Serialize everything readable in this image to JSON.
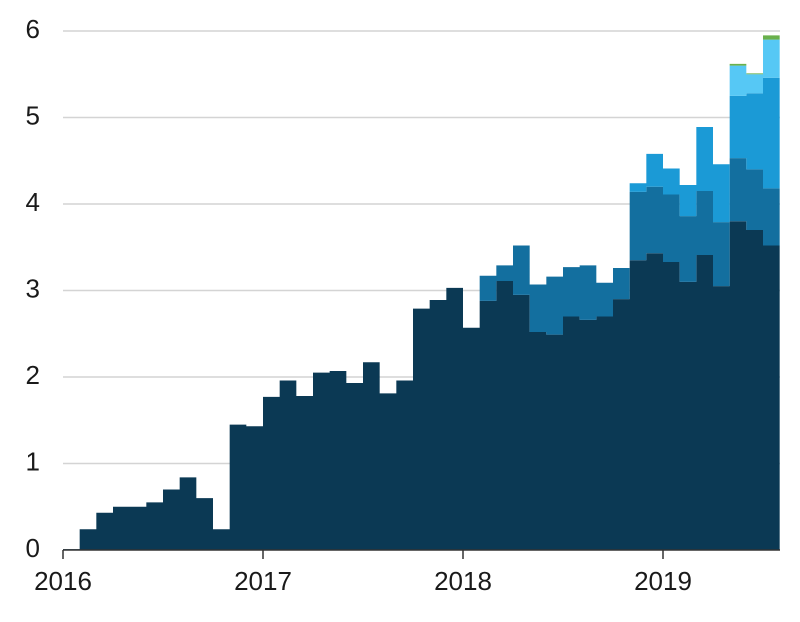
{
  "chart_data": {
    "type": "area",
    "stacked": true,
    "step": true,
    "x_start": "2016-01",
    "x_step": "month",
    "x": [
      "2016-01",
      "2016-02",
      "2016-03",
      "2016-04",
      "2016-05",
      "2016-06",
      "2016-07",
      "2016-08",
      "2016-09",
      "2016-10",
      "2016-11",
      "2016-12",
      "2017-01",
      "2017-02",
      "2017-03",
      "2017-04",
      "2017-05",
      "2017-06",
      "2017-07",
      "2017-08",
      "2017-09",
      "2017-10",
      "2017-11",
      "2017-12",
      "2018-01",
      "2018-02",
      "2018-03",
      "2018-04",
      "2018-05",
      "2018-06",
      "2018-07",
      "2018-08",
      "2018-09",
      "2018-10",
      "2018-11",
      "2018-12",
      "2019-01",
      "2019-02",
      "2019-03",
      "2019-04",
      "2019-05",
      "2019-06",
      "2019-07"
    ],
    "series": [
      {
        "color": "#0b3954",
        "values": [
          0.01,
          0.24,
          0.43,
          0.5,
          0.5,
          0.55,
          0.7,
          0.84,
          0.6,
          0.24,
          1.45,
          1.43,
          1.77,
          1.96,
          1.78,
          2.05,
          2.07,
          1.93,
          2.17,
          1.81,
          1.96,
          2.79,
          2.89,
          3.03,
          2.57,
          2.88,
          3.11,
          2.95,
          2.52,
          2.49,
          2.7,
          2.66,
          2.7,
          2.9,
          3.35,
          3.43,
          3.33,
          3.1,
          3.41,
          3.05,
          3.8,
          3.7,
          3.52
        ]
      },
      {
        "color": "#136f9f",
        "values": [
          0,
          0,
          0,
          0,
          0,
          0,
          0,
          0,
          0,
          0,
          0,
          0,
          0,
          0,
          0,
          0,
          0,
          0,
          0,
          0,
          0,
          0,
          0,
          0,
          0,
          0.29,
          0.18,
          0.57,
          0.55,
          0.67,
          0.57,
          0.63,
          0.39,
          0.36,
          0.79,
          0.77,
          0.78,
          0.76,
          0.74,
          0.74,
          0.73,
          0.7,
          0.66
        ]
      },
      {
        "color": "#1b9ad6",
        "values": [
          0,
          0,
          0,
          0,
          0,
          0,
          0,
          0,
          0,
          0,
          0,
          0,
          0,
          0,
          0,
          0,
          0,
          0,
          0,
          0,
          0,
          0,
          0,
          0,
          0,
          0,
          0,
          0,
          0,
          0,
          0,
          0,
          0,
          0,
          0.1,
          0.38,
          0.3,
          0.36,
          0.74,
          0.67,
          0.72,
          0.88,
          1.28
        ]
      },
      {
        "color": "#56c8f5",
        "values": [
          0,
          0,
          0,
          0,
          0,
          0,
          0,
          0,
          0,
          0,
          0,
          0,
          0,
          0,
          0,
          0,
          0,
          0,
          0,
          0,
          0,
          0,
          0,
          0,
          0,
          0,
          0,
          0,
          0,
          0,
          0,
          0,
          0,
          0,
          0,
          0,
          0,
          0,
          0,
          0,
          0.35,
          0.22,
          0.44
        ]
      },
      {
        "color": "#6ab04c",
        "values": [
          0,
          0,
          0,
          0,
          0,
          0,
          0,
          0,
          0,
          0,
          0,
          0,
          0,
          0,
          0,
          0,
          0,
          0,
          0,
          0,
          0,
          0,
          0,
          0,
          0,
          0,
          0,
          0,
          0,
          0,
          0,
          0,
          0,
          0,
          0,
          0,
          0,
          0,
          0,
          0,
          0.02,
          0.01,
          0.05
        ]
      }
    ],
    "ylim": [
      0,
      6
    ],
    "yticks": [
      "0",
      "1",
      "2",
      "3",
      "4",
      "5",
      "6"
    ],
    "xticks": [
      {
        "label": "2016",
        "value": "2016-01"
      },
      {
        "label": "2017",
        "value": "2017-01"
      },
      {
        "label": "2018",
        "value": "2018-01"
      },
      {
        "label": "2019",
        "value": "2019-01"
      }
    ],
    "grid": true,
    "legend": "none",
    "title": "",
    "xlabel": "",
    "ylabel": ""
  }
}
